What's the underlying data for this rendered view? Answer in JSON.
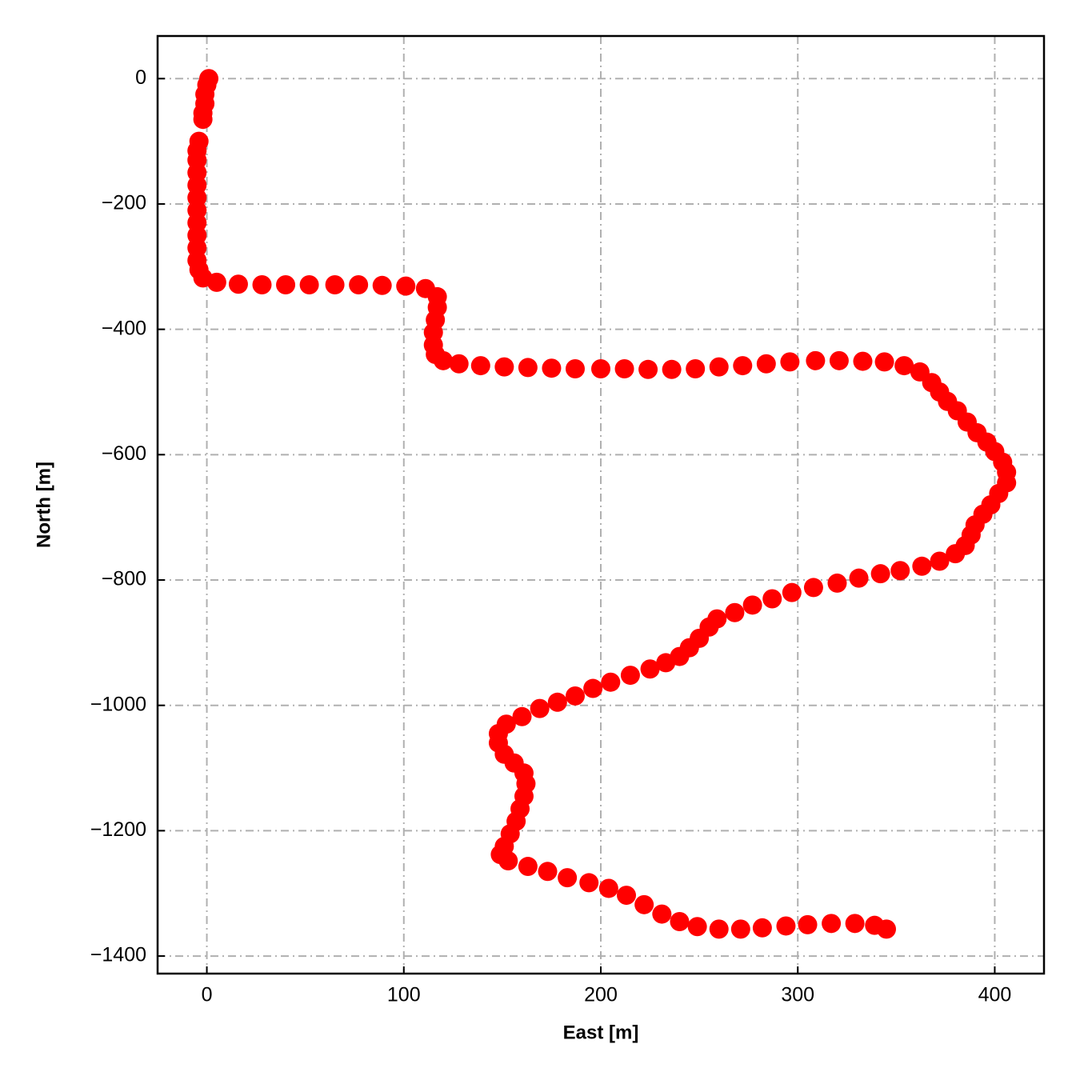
{
  "chart_data": {
    "type": "scatter",
    "x_label": "East [m]",
    "y_label": "North [m]",
    "color": "#ff0000",
    "grid": true,
    "xlim": [
      -25,
      425
    ],
    "ylim": [
      -1428,
      68
    ],
    "xticks": [
      0,
      100,
      200,
      300,
      400
    ],
    "yticks": [
      0,
      {
        "value": -200,
        "label": "−200"
      },
      {
        "value": -400,
        "label": "−400"
      },
      {
        "value": -600,
        "label": "−600"
      },
      {
        "value": -800,
        "label": "−800"
      },
      {
        "value": -1000,
        "label": "−1000"
      },
      {
        "value": -1200,
        "label": "−1200"
      },
      {
        "value": -1400,
        "label": "−1400"
      }
    ],
    "x": [
      1,
      0,
      -1,
      -1,
      -2,
      -2,
      -4,
      -5,
      -5,
      -5,
      -5,
      -5,
      -5,
      -5,
      -5,
      -5,
      -5,
      -4,
      -2,
      5,
      16,
      28,
      40,
      52,
      65,
      77,
      89,
      101,
      111,
      117,
      117,
      116,
      115,
      115,
      116,
      120,
      128,
      139,
      151,
      163,
      175,
      187,
      200,
      212,
      224,
      236,
      248,
      260,
      272,
      284,
      296,
      309,
      321,
      333,
      344,
      354,
      362,
      368,
      372,
      376,
      381,
      386,
      391,
      396,
      400,
      404,
      406,
      406,
      402,
      398,
      394,
      390,
      388,
      385,
      380,
      372,
      363,
      352,
      342,
      331,
      320,
      308,
      297,
      287,
      277,
      268,
      259,
      255,
      250,
      245,
      240,
      233,
      225,
      215,
      205,
      196,
      187,
      178,
      169,
      160,
      152,
      148,
      148,
      151,
      156,
      161,
      162,
      161,
      159,
      157,
      154,
      151,
      149,
      153,
      163,
      173,
      183,
      194,
      204,
      213,
      222,
      231,
      240,
      249,
      260,
      271,
      282,
      294,
      305,
      317,
      329,
      339,
      345
    ],
    "y": [
      0,
      -10,
      -25,
      -40,
      -55,
      -65,
      -100,
      -115,
      -130,
      -150,
      -170,
      -190,
      -210,
      -230,
      -250,
      -270,
      -290,
      -305,
      -318,
      -325,
      -328,
      -329,
      -329,
      -329,
      -329,
      -329,
      -330,
      -331,
      -335,
      -348,
      -365,
      -385,
      -405,
      -425,
      -440,
      -450,
      -455,
      -458,
      -460,
      -461,
      -462,
      -463,
      -463,
      -463,
      -464,
      -464,
      -463,
      -460,
      -458,
      -455,
      -452,
      -450,
      -450,
      -451,
      -452,
      -458,
      -468,
      -485,
      -500,
      -515,
      -530,
      -548,
      -565,
      -580,
      -595,
      -612,
      -628,
      -645,
      -662,
      -680,
      -695,
      -712,
      -728,
      -745,
      -758,
      -770,
      -778,
      -785,
      -790,
      -797,
      -805,
      -812,
      -820,
      -830,
      -840,
      -852,
      -862,
      -875,
      -893,
      -908,
      -922,
      -932,
      -942,
      -952,
      -963,
      -973,
      -985,
      -995,
      -1005,
      -1018,
      -1030,
      -1045,
      -1060,
      -1078,
      -1092,
      -1108,
      -1125,
      -1145,
      -1165,
      -1185,
      -1205,
      -1225,
      -1238,
      -1248,
      -1257,
      -1265,
      -1275,
      -1283,
      -1292,
      -1303,
      -1318,
      -1333,
      -1345,
      -1353,
      -1357,
      -1357,
      -1355,
      -1352,
      -1350,
      -1348,
      -1348,
      -1351,
      -1357
    ]
  }
}
